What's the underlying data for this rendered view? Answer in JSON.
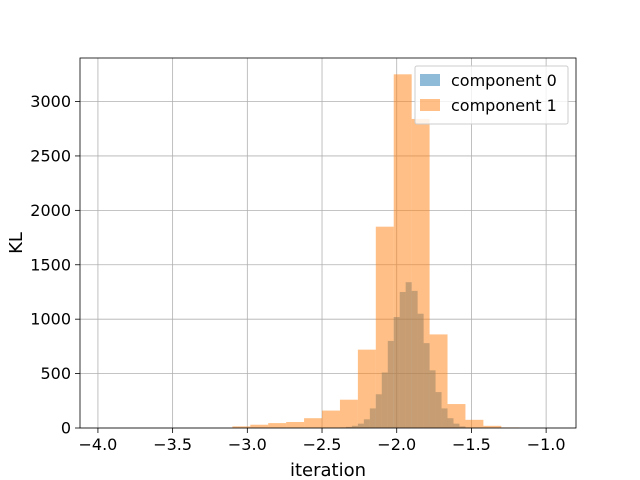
{
  "chart_data": {
    "type": "bar",
    "title": "",
    "xlabel": "iteration",
    "ylabel": "KL",
    "xlim": [
      -4.12,
      -0.8
    ],
    "ylim": [
      0,
      3400
    ],
    "xticks": [
      -4.0,
      -3.5,
      -3.0,
      -2.5,
      -2.0,
      -1.5,
      -1.0
    ],
    "xtick_labels": [
      "−4.0",
      "−3.5",
      "−3.0",
      "−2.5",
      "−2.0",
      "−1.5",
      "−1.0"
    ],
    "yticks": [
      0,
      500,
      1000,
      1500,
      2000,
      2500,
      3000
    ],
    "ytick_labels": [
      "0",
      "500",
      "1000",
      "1500",
      "2000",
      "2500",
      "3000"
    ],
    "grid": true,
    "legend_position": "top-right",
    "series": [
      {
        "name": "component 0",
        "color": "#1f77b4",
        "alpha": 0.5,
        "bin_edges": [
          -2.38,
          -2.34,
          -2.3,
          -2.26,
          -2.22,
          -2.18,
          -2.14,
          -2.1,
          -2.06,
          -2.02,
          -1.98,
          -1.94,
          -1.9,
          -1.86,
          -1.82,
          -1.78,
          -1.74,
          -1.7,
          -1.66,
          -1.62,
          -1.58,
          -1.54,
          -1.5,
          -1.46
        ],
        "counts": [
          5,
          10,
          20,
          40,
          80,
          180,
          310,
          510,
          800,
          1020,
          1250,
          1340,
          1260,
          1050,
          780,
          530,
          330,
          180,
          90,
          40,
          15,
          5,
          2
        ]
      },
      {
        "name": "component 1",
        "color": "#ff7f0e",
        "alpha": 0.5,
        "bin_edges": [
          -3.1,
          -2.98,
          -2.86,
          -2.74,
          -2.62,
          -2.5,
          -2.38,
          -2.26,
          -2.14,
          -2.02,
          -1.9,
          -1.78,
          -1.66,
          -1.54,
          -1.42,
          -1.3,
          -1.18
        ],
        "counts": [
          15,
          30,
          45,
          55,
          90,
          160,
          260,
          720,
          1850,
          3250,
          2840,
          860,
          220,
          75,
          20,
          5
        ]
      }
    ]
  }
}
